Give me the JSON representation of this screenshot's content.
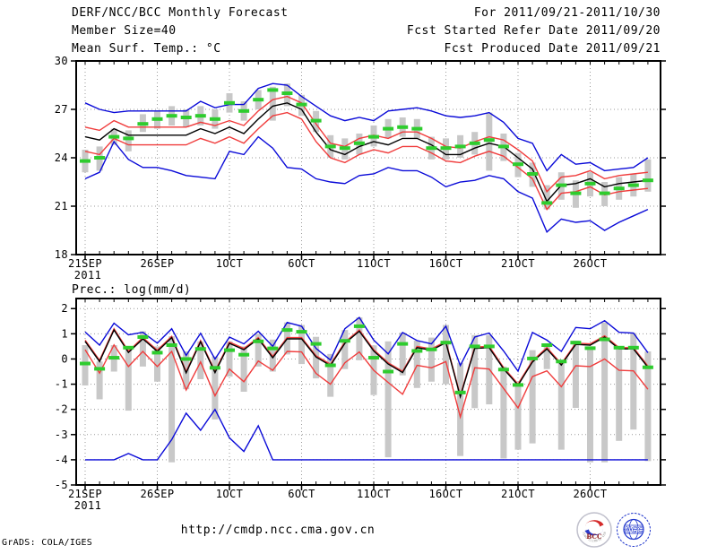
{
  "header": {
    "title": "DERF/NCC/BCC Monthly Forecast",
    "member_size": "Member Size=40",
    "for_range": "For 2011/09/21-2011/10/30",
    "refer_date": "Fcst Started Refer Date 2011/09/20",
    "produced_date": "Fcst Produced Date 2011/09/21"
  },
  "footer": {
    "url": "http://cmdp.ncc.cma.gov.cn",
    "grads_credit": "GrADS: COLA/IGES",
    "logos": {
      "bcc_label": "BCC",
      "bcc_ring": "BEIJING CLIMATE CENTER",
      "ncc_label": "NCC"
    }
  },
  "colors": {
    "blue": "#0a0ad8",
    "red": "#f03c3c",
    "black": "#000000",
    "green": "#2ecc2e",
    "bar": "#c8c8c8",
    "grid": "#9a9a9a",
    "frame": "#000000"
  },
  "chart_data": [
    {
      "type": "line",
      "title": "Mean Surf. Temp.: °C",
      "n_days": 40,
      "x_tick_labels": [
        "21SEP",
        "26SEP",
        "1OCT",
        "6OCT",
        "11OCT",
        "16OCT",
        "21OCT",
        "26OCT"
      ],
      "x_tick_days": [
        0,
        5,
        10,
        15,
        20,
        25,
        30,
        35
      ],
      "x_year_label": "2011",
      "y_ticks": [
        18,
        21,
        24,
        27,
        30
      ],
      "grid_y": [
        21,
        24,
        27
      ],
      "ylim": [
        18,
        30
      ],
      "series": [
        {
          "name": "ensemble-max",
          "color": "blue",
          "values": [
            27.4,
            27.0,
            26.8,
            26.9,
            26.9,
            26.9,
            26.9,
            26.9,
            27.5,
            27.1,
            27.3,
            27.3,
            28.3,
            28.6,
            28.5,
            27.8,
            27.2,
            26.6,
            26.3,
            26.5,
            26.3,
            26.9,
            27.0,
            27.1,
            26.9,
            26.6,
            26.5,
            26.6,
            26.8,
            26.2,
            25.2,
            24.9,
            23.2,
            24.2,
            23.6,
            23.7,
            23.2,
            23.3,
            23.4,
            24.0
          ]
        },
        {
          "name": "ensemble-min",
          "color": "blue",
          "values": [
            22.7,
            23.1,
            25.0,
            23.9,
            23.4,
            23.4,
            23.2,
            22.9,
            22.8,
            22.7,
            24.4,
            24.2,
            25.3,
            24.6,
            23.4,
            23.3,
            22.7,
            22.5,
            22.4,
            22.9,
            23.0,
            23.4,
            23.2,
            23.2,
            22.8,
            22.2,
            22.5,
            22.6,
            22.9,
            22.7,
            21.9,
            21.5,
            19.4,
            20.2,
            20.0,
            20.1,
            19.5,
            20.0,
            20.4,
            20.8
          ]
        },
        {
          "name": "upper-spread",
          "color": "red",
          "values": [
            25.9,
            25.7,
            26.3,
            25.9,
            25.9,
            25.9,
            25.9,
            25.9,
            26.2,
            26.0,
            26.3,
            26.0,
            26.9,
            27.6,
            27.8,
            27.4,
            26.1,
            24.9,
            24.7,
            25.2,
            25.4,
            25.2,
            25.6,
            25.6,
            25.2,
            24.7,
            24.6,
            25.0,
            25.3,
            25.1,
            24.5,
            23.8,
            21.9,
            22.8,
            22.9,
            23.2,
            22.7,
            22.9,
            23.0,
            23.1
          ]
        },
        {
          "name": "lower-spread",
          "color": "red",
          "values": [
            24.4,
            24.2,
            25.2,
            24.8,
            24.8,
            24.8,
            24.8,
            24.8,
            25.2,
            24.9,
            25.3,
            24.9,
            25.8,
            26.6,
            26.8,
            26.4,
            25.0,
            24.0,
            23.7,
            24.2,
            24.5,
            24.3,
            24.7,
            24.7,
            24.3,
            23.8,
            23.7,
            24.1,
            24.4,
            24.1,
            23.4,
            22.7,
            20.8,
            21.8,
            21.9,
            22.2,
            21.7,
            21.9,
            22.0,
            22.1
          ]
        },
        {
          "name": "ensemble-mean",
          "color": "black",
          "values": [
            25.3,
            25.1,
            25.8,
            25.4,
            25.4,
            25.4,
            25.4,
            25.4,
            25.8,
            25.5,
            25.9,
            25.5,
            26.4,
            27.2,
            27.4,
            27.0,
            25.6,
            24.5,
            24.2,
            24.7,
            25.0,
            24.8,
            25.2,
            25.2,
            24.8,
            24.2,
            24.2,
            24.6,
            24.9,
            24.7,
            24.0,
            23.3,
            21.3,
            22.3,
            22.4,
            22.7,
            22.2,
            22.4,
            22.5,
            22.6
          ]
        },
        {
          "name": "reference",
          "color": "green",
          "style": "dashes",
          "values": [
            23.8,
            24.0,
            25.3,
            25.2,
            26.1,
            26.4,
            26.6,
            26.5,
            26.6,
            26.4,
            27.4,
            26.9,
            27.6,
            28.2,
            28.0,
            27.3,
            26.3,
            24.7,
            24.6,
            24.9,
            25.3,
            25.8,
            25.9,
            25.8,
            24.6,
            24.6,
            24.7,
            24.9,
            25.1,
            24.7,
            23.6,
            23.0,
            21.2,
            22.3,
            21.8,
            22.4,
            21.8,
            22.1,
            22.3,
            22.6
          ]
        }
      ],
      "bars": {
        "top": [
          24.5,
          24.7,
          25.8,
          25.7,
          26.7,
          26.9,
          27.2,
          27.0,
          27.2,
          27.0,
          28.0,
          27.5,
          28.2,
          28.4,
          28.6,
          27.9,
          26.9,
          25.4,
          25.2,
          25.5,
          26.0,
          26.4,
          26.5,
          26.4,
          25.3,
          25.2,
          25.4,
          25.6,
          26.8,
          25.5,
          24.3,
          23.7,
          22.3,
          23.1,
          22.6,
          23.1,
          22.5,
          22.8,
          23.0,
          23.9
        ],
        "bottom": [
          23.1,
          23.2,
          24.8,
          24.4,
          25.6,
          25.8,
          26.0,
          25.9,
          26.0,
          25.8,
          26.8,
          26.3,
          27.0,
          26.3,
          27.2,
          26.6,
          25.6,
          24.0,
          23.9,
          24.2,
          24.7,
          25.2,
          25.3,
          25.2,
          23.9,
          23.9,
          24.0,
          24.2,
          23.2,
          23.8,
          22.8,
          22.2,
          20.8,
          21.4,
          20.9,
          21.6,
          21.0,
          21.4,
          21.6,
          21.9
        ]
      }
    },
    {
      "type": "line",
      "title": "Prec.: log(mm/d)",
      "n_days": 40,
      "x_tick_labels": [
        "21SEP",
        "26SEP",
        "1OCT",
        "6OCT",
        "11OCT",
        "16OCT",
        "21OCT",
        "26OCT"
      ],
      "x_tick_days": [
        0,
        5,
        10,
        15,
        20,
        25,
        30,
        35
      ],
      "x_year_label": "2011",
      "y_ticks": [
        2,
        1,
        0,
        -1,
        -2,
        -3,
        -4,
        -5
      ],
      "grid_y": [
        2,
        1,
        0,
        -1,
        -2,
        -3,
        -4
      ],
      "ylim": [
        -5,
        2.4
      ],
      "series": [
        {
          "name": "ensemble-max",
          "color": "blue",
          "values": [
            1.07,
            0.55,
            1.42,
            0.96,
            1.06,
            0.63,
            1.2,
            0.14,
            1.02,
            0.0,
            0.87,
            0.6,
            1.1,
            0.5,
            1.45,
            1.3,
            0.42,
            -0.04,
            1.2,
            1.65,
            0.75,
            0.2,
            1.05,
            0.73,
            0.6,
            1.3,
            -0.26,
            0.87,
            1.03,
            0.32,
            -0.48,
            1.05,
            0.75,
            0.3,
            1.25,
            1.2,
            1.52,
            1.06,
            1.03,
            0.25
          ]
        },
        {
          "name": "ensemble-min",
          "color": "blue",
          "values": [
            -4,
            -4,
            -4,
            -3.75,
            -4,
            -4,
            -3.2,
            -2.15,
            -2.83,
            -2.0,
            -3.13,
            -3.67,
            -2.65,
            -4,
            -4,
            -4,
            -4,
            -4,
            -4,
            -4,
            -4,
            -4,
            -4,
            -4,
            -4,
            -4,
            -4,
            -4,
            -4,
            -4,
            -4,
            -4,
            -4,
            -4,
            -4,
            -4,
            -4,
            -4,
            -4,
            -4
          ]
        },
        {
          "name": "upper-spread",
          "color": "red",
          "values": [
            0.75,
            -0.05,
            1.2,
            0.31,
            0.85,
            0.35,
            0.9,
            -0.5,
            0.73,
            -0.49,
            0.67,
            0.42,
            0.85,
            0.1,
            0.85,
            0.85,
            0.13,
            -0.21,
            0.67,
            1.15,
            0.37,
            -0.15,
            -0.49,
            0.5,
            0.4,
            0.7,
            -1.45,
            0.47,
            0.5,
            -0.34,
            -0.99,
            -0.07,
            0.45,
            -0.19,
            0.63,
            0.6,
            0.92,
            0.45,
            0.45,
            -0.28
          ]
        },
        {
          "name": "lower-spread",
          "color": "red",
          "values": [
            0.37,
            -0.56,
            0.56,
            -0.3,
            0.3,
            -0.3,
            0.3,
            -1.23,
            -0.12,
            -1.46,
            -0.4,
            -0.9,
            -0.08,
            -0.45,
            0.3,
            0.28,
            -0.57,
            -1.0,
            -0.15,
            0.28,
            -0.45,
            -0.93,
            -1.4,
            -0.25,
            -0.35,
            -0.1,
            -2.3,
            -0.35,
            -0.4,
            -1.17,
            -1.94,
            -0.7,
            -0.47,
            -1.1,
            -0.27,
            -0.3,
            0.0,
            -0.45,
            -0.47,
            -1.2
          ]
        },
        {
          "name": "ensemble-mean",
          "color": "black",
          "values": [
            0.7,
            -0.1,
            1.15,
            0.26,
            0.8,
            0.3,
            0.85,
            -0.55,
            0.68,
            -0.54,
            0.62,
            0.37,
            0.8,
            0.05,
            0.8,
            0.8,
            0.08,
            -0.26,
            0.62,
            1.1,
            0.32,
            -0.2,
            -0.54,
            0.45,
            0.35,
            0.65,
            -1.5,
            0.42,
            0.45,
            -0.39,
            -1.04,
            -0.12,
            0.4,
            -0.24,
            0.58,
            0.55,
            0.87,
            0.4,
            0.4,
            -0.33
          ]
        },
        {
          "name": "reference",
          "color": "green",
          "style": "dashes",
          "values": [
            -0.18,
            -0.39,
            0.05,
            0.45,
            0.87,
            0.25,
            0.55,
            0.0,
            0.4,
            -0.35,
            0.35,
            0.17,
            0.7,
            0.42,
            1.15,
            1.08,
            0.6,
            -0.25,
            0.72,
            1.3,
            0.05,
            -0.5,
            0.6,
            0.32,
            0.38,
            0.65,
            -1.33,
            0.5,
            0.5,
            -0.42,
            -1.03,
            0.02,
            0.55,
            -0.1,
            0.65,
            0.43,
            0.78,
            0.45,
            0.45,
            -0.33
          ]
        }
      ],
      "bars": {
        "top": [
          0.55,
          -0.1,
          0.55,
          0.5,
          1.1,
          0.5,
          0.9,
          0.3,
          0.7,
          0.1,
          0.7,
          0.5,
          1.0,
          0.77,
          1.45,
          1.35,
          0.88,
          0.2,
          1.15,
          1.65,
          0.54,
          0.7,
          1.05,
          0.73,
          0.85,
          1.35,
          -0.15,
          0.95,
          0.95,
          -0.3,
          -0.95,
          0.35,
          0.55,
          -0.15,
          0.73,
          0.5,
          1.45,
          0.48,
          1.03,
          0.3
        ],
        "bottom": [
          -1.05,
          -1.6,
          -0.5,
          -2.05,
          -0.3,
          -0.9,
          -4.1,
          -1.2,
          -0.8,
          -2.4,
          -0.7,
          -1.3,
          -0.3,
          -0.5,
          0.18,
          -0.2,
          -0.77,
          -1.5,
          -0.4,
          -0.05,
          -1.43,
          -3.9,
          -0.65,
          -1.15,
          -0.9,
          -1.0,
          -3.85,
          -1.95,
          -1.8,
          -3.95,
          -3.6,
          -3.35,
          -0.4,
          -3.6,
          -1.94,
          -4.1,
          -4.1,
          -3.25,
          -2.8,
          -4.05
        ]
      }
    }
  ]
}
